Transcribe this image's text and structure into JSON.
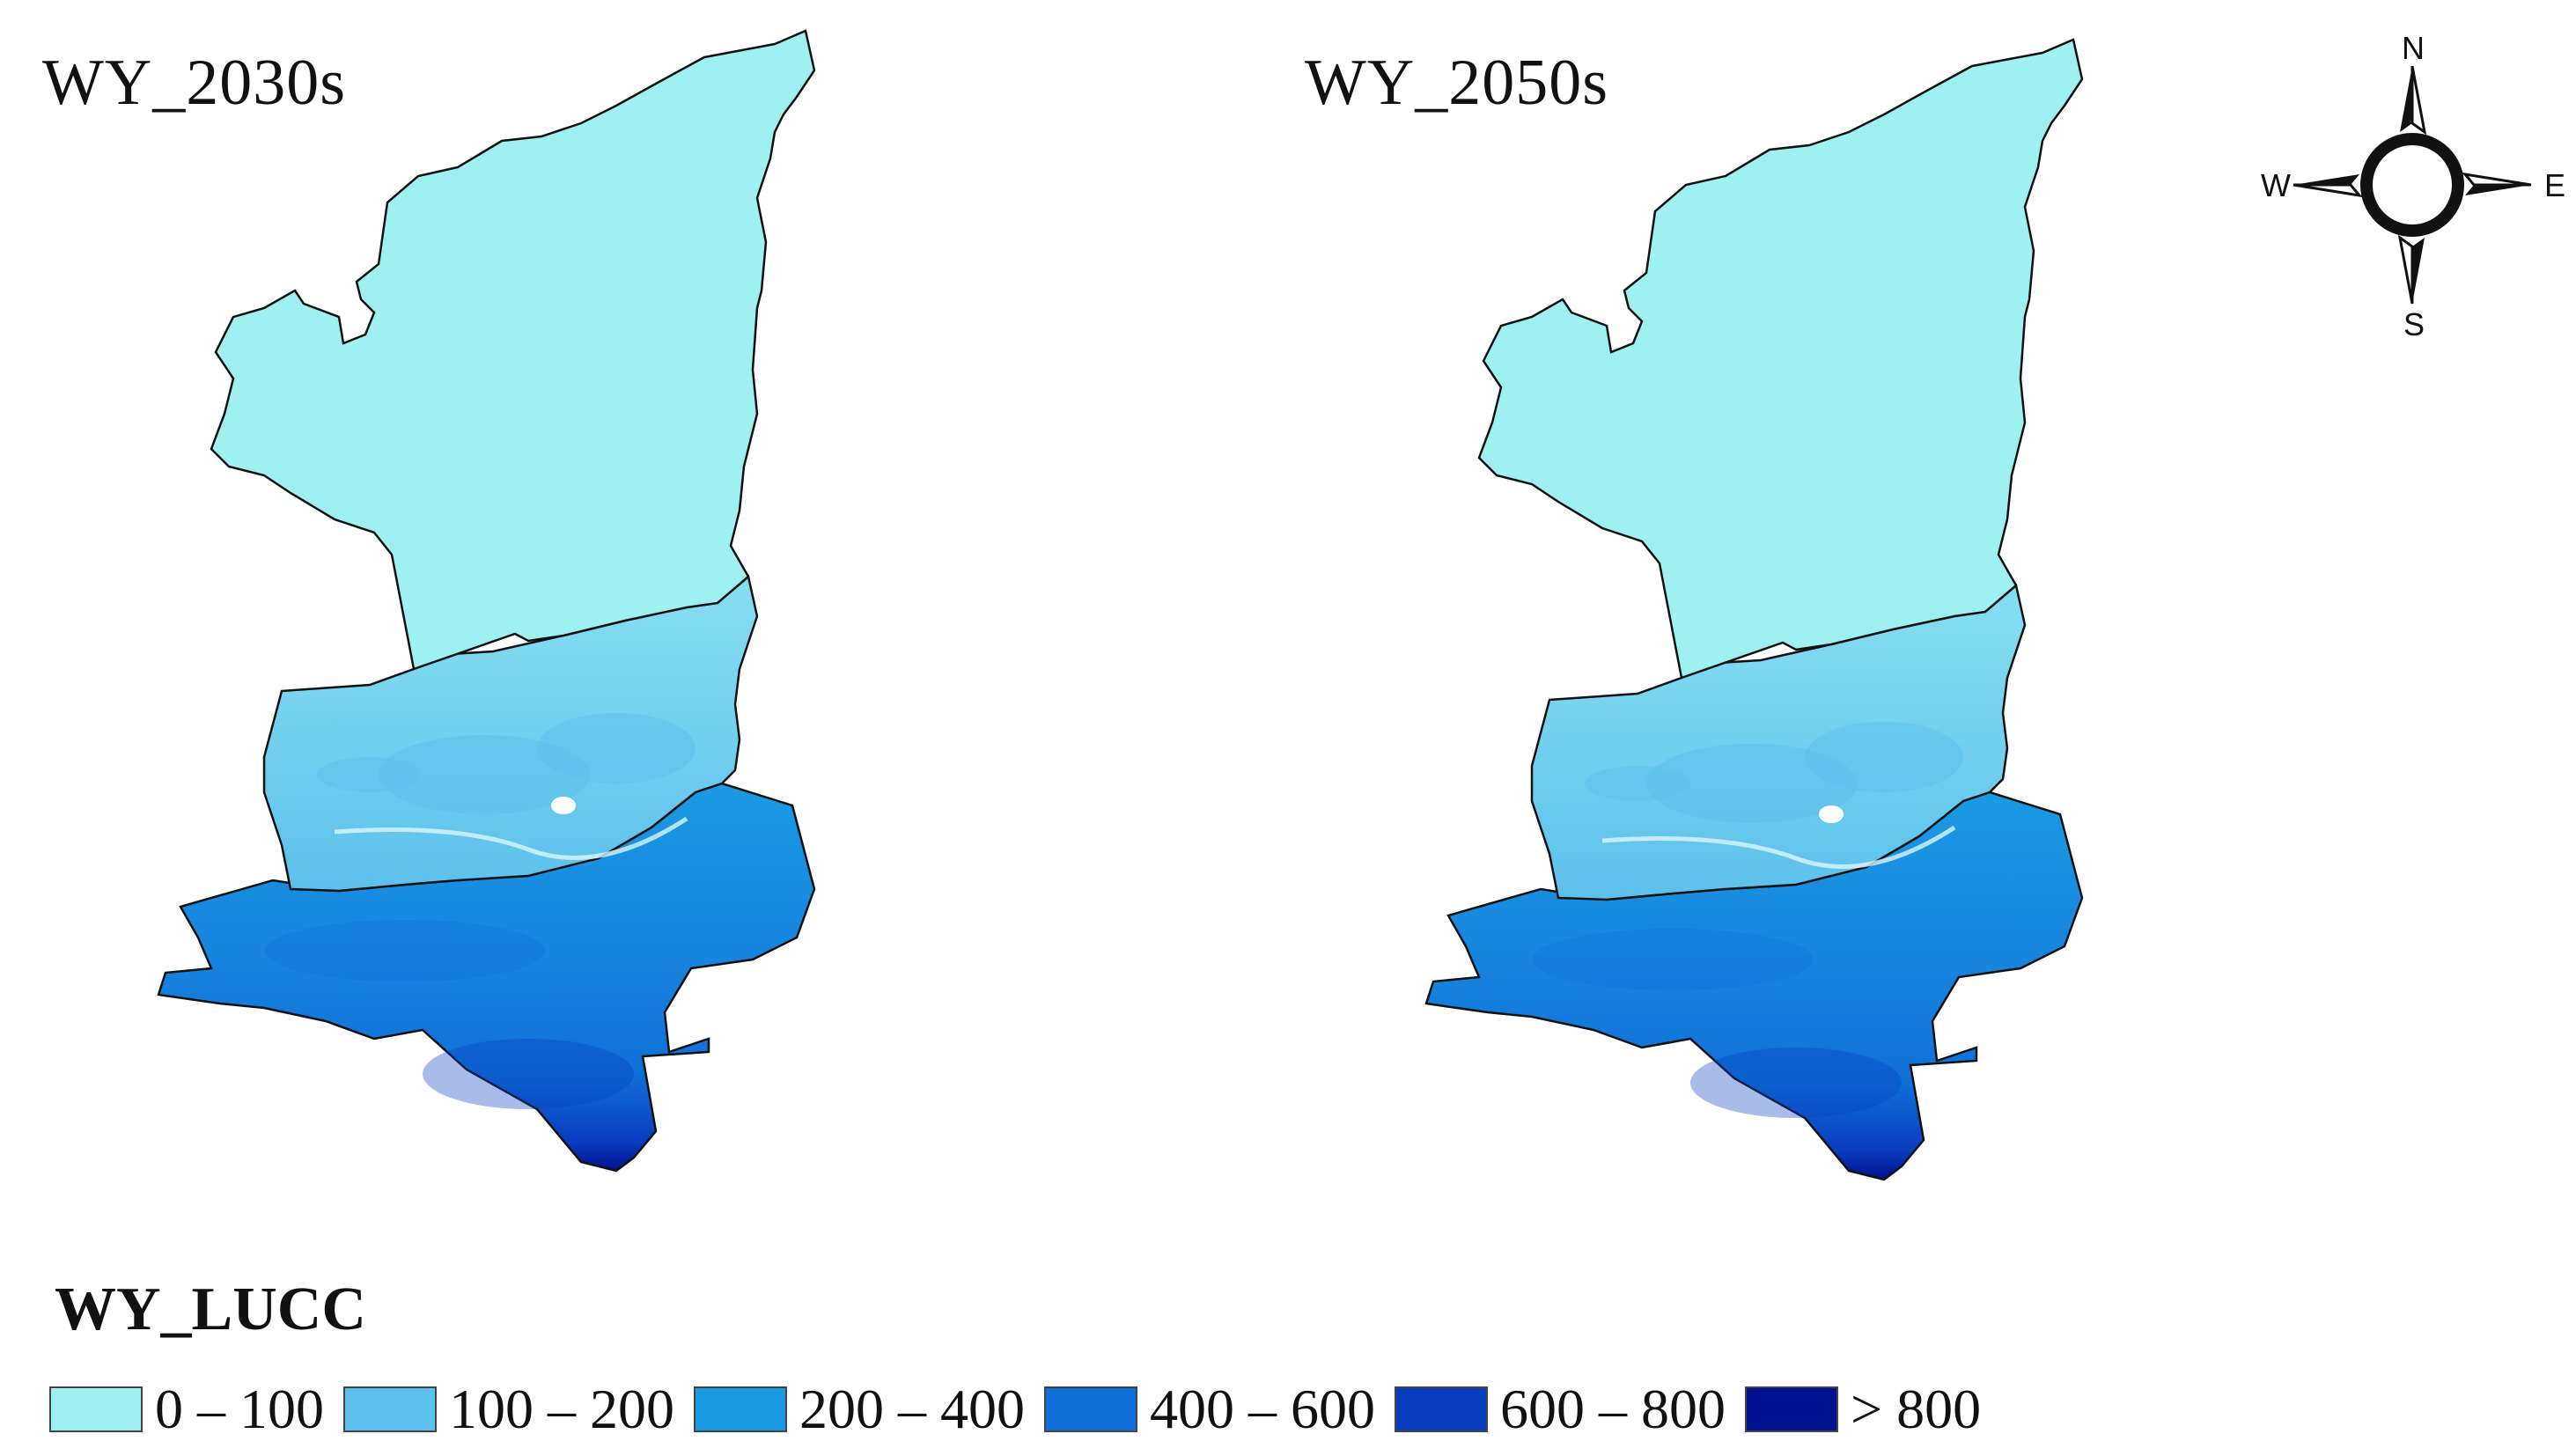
{
  "maps": [
    {
      "title": "WY_2030s"
    },
    {
      "title": "WY_2050s"
    }
  ],
  "compass": {
    "north": "N",
    "south": "S",
    "east": "E",
    "west": "W"
  },
  "legend": {
    "title": "WY_LUCC",
    "classes": [
      {
        "label": "0 – 100",
        "color": "#9ff0f0"
      },
      {
        "label": "100 – 200",
        "color": "#5cc0ec"
      },
      {
        "label": "200 – 400",
        "color": "#1b9ae4"
      },
      {
        "label": "400 – 600",
        "color": "#0f6fd8"
      },
      {
        "label": "600 – 800",
        "color": "#0a3ec0"
      },
      {
        "label": "> 800",
        "color": "#00128f"
      }
    ]
  }
}
